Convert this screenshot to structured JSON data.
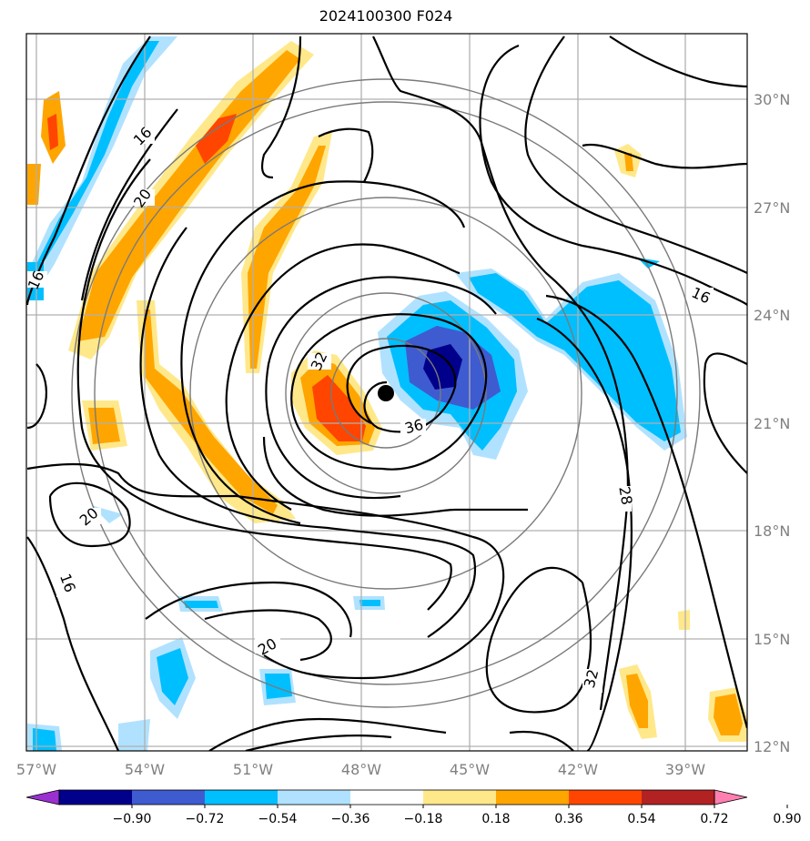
{
  "title": "2024100300 F024",
  "map": {
    "lon_ticks": [
      "57°W",
      "54°W",
      "51°W",
      "48°W",
      "45°W",
      "42°W",
      "39°W"
    ],
    "lat_ticks": [
      "30°N",
      "27°N",
      "24°N",
      "21°N",
      "18°N",
      "15°N",
      "12°N"
    ],
    "storm_center": {
      "lon": -47.3,
      "lat": 21.9
    },
    "contour_labels": [
      "16",
      "20",
      "16",
      "20",
      "32",
      "36",
      "16",
      "28",
      "20",
      "16",
      "20",
      "32"
    ]
  },
  "colorbar": {
    "levels": [
      "−0.90",
      "−0.72",
      "−0.54",
      "−0.36",
      "−0.18",
      "0.18",
      "0.36",
      "0.54",
      "0.72",
      "0.90"
    ],
    "colors": [
      "#9b30d0",
      "#00008b",
      "#3f5bd0",
      "#00bfff",
      "#b0e2ff",
      "#ffffff",
      "#ffe88a",
      "#ffa500",
      "#ff4500",
      "#b22222",
      "#ff7fb0"
    ]
  }
}
